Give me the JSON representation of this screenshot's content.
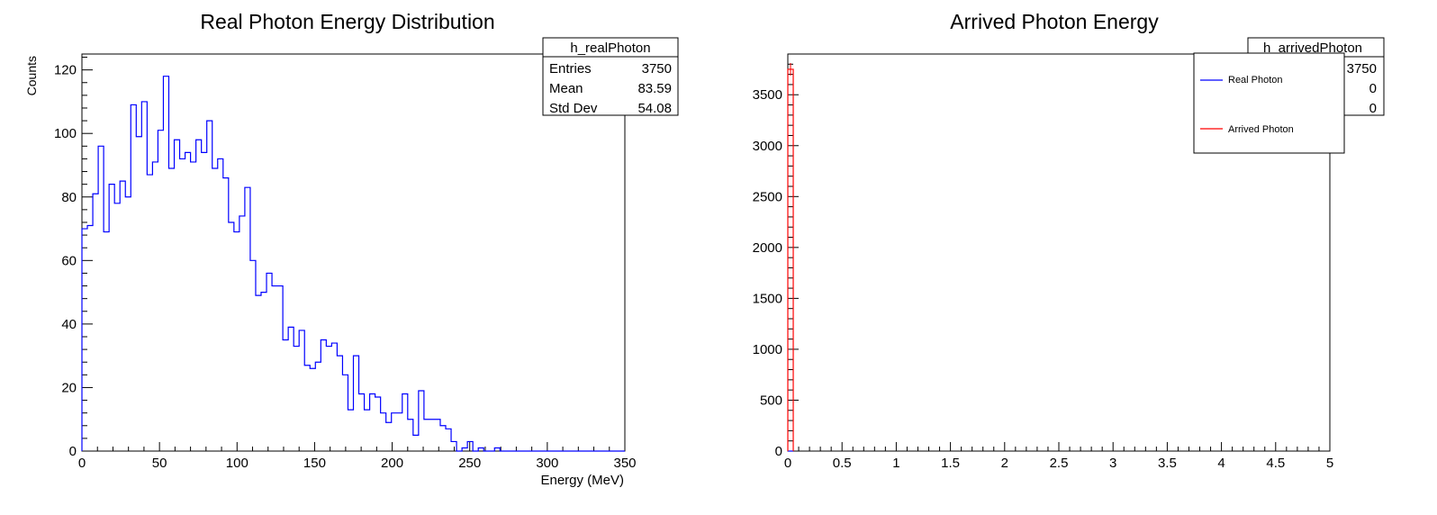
{
  "chart_data": [
    {
      "type": "histogram",
      "title": "Real Photon Energy Distribution",
      "xlabel": "Energy (MeV)",
      "ylabel": "Counts",
      "xlim": [
        0,
        350
      ],
      "ylim": [
        0,
        125
      ],
      "x_ticks": [
        "0",
        "50",
        "100",
        "150",
        "200",
        "250",
        "300",
        "350"
      ],
      "y_ticks": [
        "0",
        "20",
        "40",
        "60",
        "80",
        "100",
        "120"
      ],
      "bin_width": 3.5,
      "series": [
        {
          "color": "#0000ff",
          "values": [
            70,
            71,
            81,
            96,
            69,
            84,
            78,
            85,
            80,
            109,
            99,
            110,
            87,
            91,
            101,
            118,
            89,
            98,
            92,
            94,
            91,
            98,
            94,
            104,
            89,
            92,
            86,
            72,
            69,
            74,
            83,
            60,
            49,
            50,
            56,
            52,
            52,
            35,
            39,
            33,
            38,
            27,
            26,
            28,
            35,
            33,
            34,
            30,
            24,
            13,
            30,
            18,
            13,
            18,
            17,
            12,
            9,
            12,
            12,
            18,
            10,
            5,
            19,
            10,
            10,
            10,
            8,
            7,
            3,
            0,
            1,
            3,
            0,
            1,
            0,
            0,
            1,
            0,
            0,
            0,
            0,
            0,
            0,
            0,
            0,
            0,
            0,
            0,
            0,
            0,
            0,
            0,
            0,
            0,
            0,
            0,
            0,
            0,
            0,
            0
          ]
        }
      ],
      "stats": {
        "name": "h_realPhoton",
        "rows": [
          {
            "label": "Entries",
            "value": "3750"
          },
          {
            "label": "Mean",
            "value": "83.59"
          },
          {
            "label": "Std Dev",
            "value": "54.08"
          }
        ]
      },
      "grid": false
    },
    {
      "type": "histogram",
      "title": "Arrived Photon Energy",
      "xlabel": "",
      "ylabel": "",
      "xlim": [
        0,
        5
      ],
      "ylim": [
        0,
        3900
      ],
      "x_ticks": [
        "0",
        "0.5",
        "1",
        "1.5",
        "2",
        "2.5",
        "3",
        "3.5",
        "4",
        "4.5",
        "5"
      ],
      "y_ticks": [
        "0",
        "500",
        "1000",
        "1500",
        "2000",
        "2500",
        "3000",
        "3500"
      ],
      "bin_width": 0.05,
      "series": [
        {
          "name": "Real Photon",
          "color": "#0000ff",
          "values": [
            0
          ]
        },
        {
          "name": "Arrived Photon",
          "color": "#ff0000",
          "values": [
            3750
          ]
        }
      ],
      "stats": {
        "name": "h_arrivedPhoton",
        "rows": [
          {
            "label": "",
            "value": "3750"
          },
          {
            "label": "",
            "value": "0"
          },
          {
            "label": "",
            "value": "0"
          }
        ]
      },
      "legend": {
        "position": "top-right"
      },
      "grid": false
    }
  ]
}
